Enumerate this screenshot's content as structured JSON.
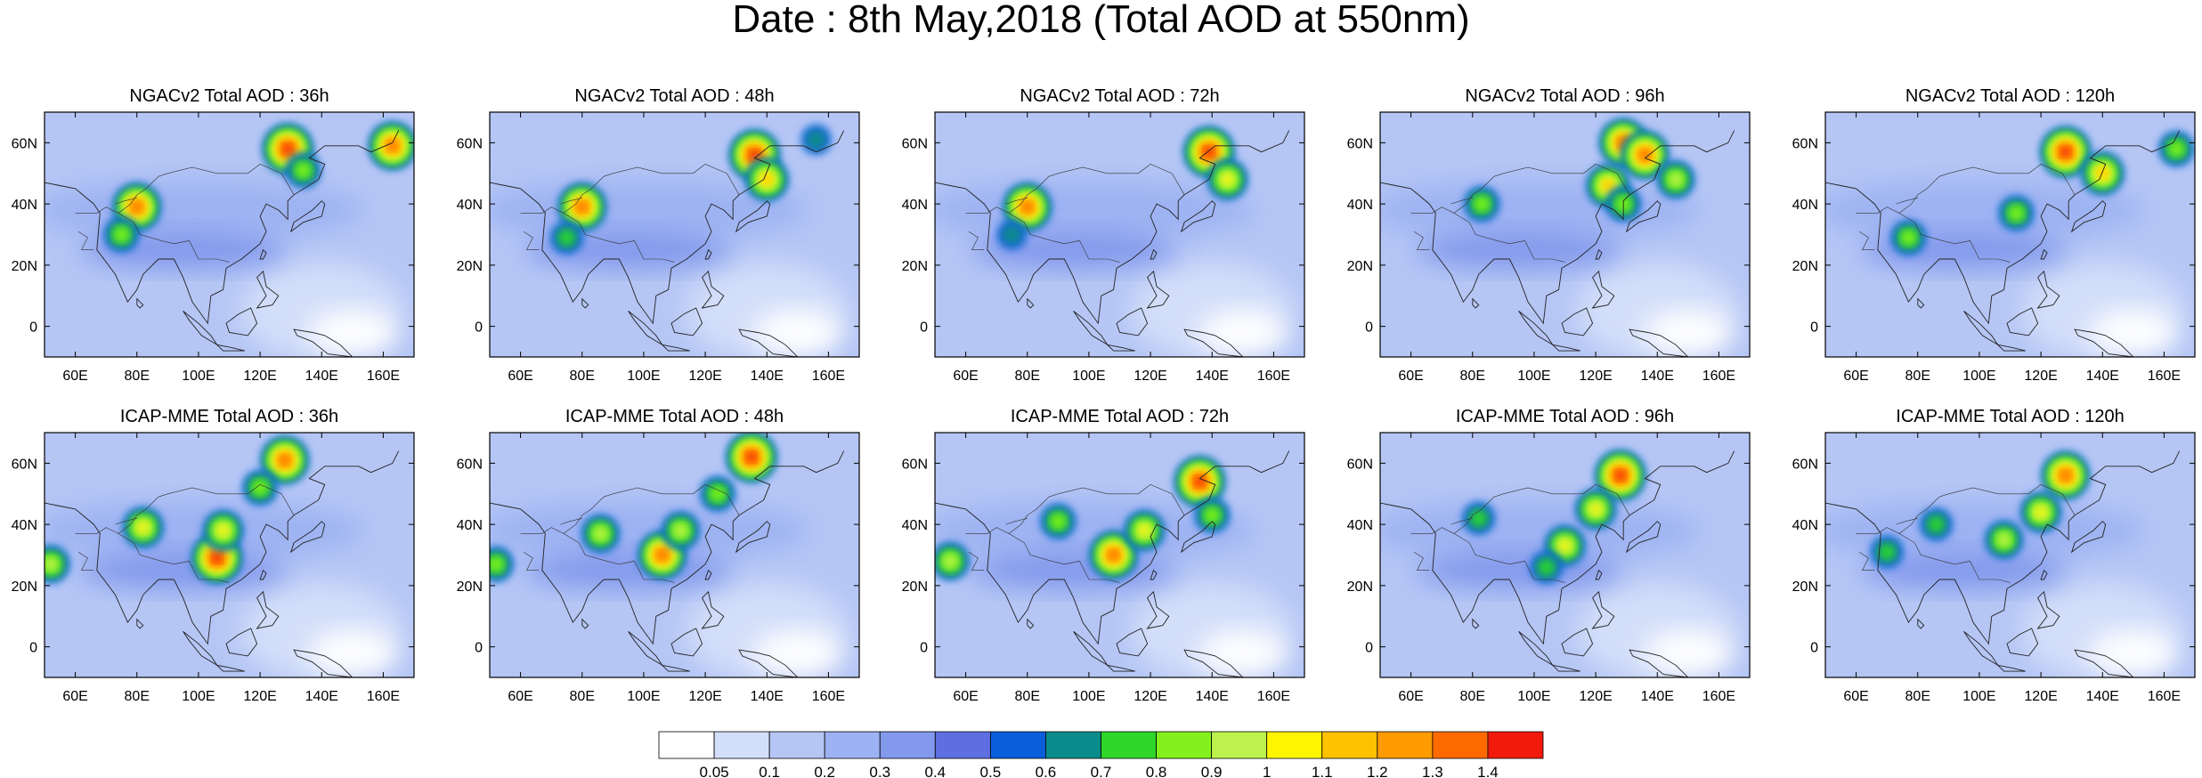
{
  "figure": {
    "title": "Date : 8th May,2018 (Total AOD at 550nm)"
  },
  "panel_rows": [
    {
      "model": "NGACv2",
      "panels": [
        {
          "title": "NGACv2 Total AOD : 36h",
          "forecast_hour": 36
        },
        {
          "title": "NGACv2 Total AOD : 48h",
          "forecast_hour": 48
        },
        {
          "title": "NGACv2 Total AOD : 72h",
          "forecast_hour": 72
        },
        {
          "title": "NGACv2 Total AOD : 96h",
          "forecast_hour": 96
        },
        {
          "title": "NGACv2 Total AOD : 120h",
          "forecast_hour": 120
        }
      ]
    },
    {
      "model": "ICAP-MME",
      "panels": [
        {
          "title": "ICAP-MME Total AOD : 36h",
          "forecast_hour": 36
        },
        {
          "title": "ICAP-MME Total AOD : 48h",
          "forecast_hour": 48
        },
        {
          "title": "ICAP-MME Total AOD : 72h",
          "forecast_hour": 72
        },
        {
          "title": "ICAP-MME Total AOD : 96h",
          "forecast_hour": 96
        },
        {
          "title": "ICAP-MME Total AOD : 120h",
          "forecast_hour": 120
        }
      ]
    }
  ],
  "map_axes": {
    "lon_range": [
      50,
      170
    ],
    "lat_range": [
      -10,
      70
    ],
    "lon_ticks": [
      60,
      80,
      100,
      120,
      140,
      160
    ],
    "lon_tick_labels": [
      "60E",
      "80E",
      "100E",
      "120E",
      "140E",
      "160E"
    ],
    "lat_ticks": [
      0,
      20,
      40,
      60
    ],
    "lat_tick_labels": [
      "0",
      "20N",
      "40N",
      "60N"
    ],
    "grid": false
  },
  "colorbar": {
    "orientation": "horizontal",
    "placement": "bottom",
    "labels": [
      "0.05",
      "0.1",
      "0.2",
      "0.3",
      "0.4",
      "0.5",
      "0.6",
      "0.7",
      "0.8",
      "0.9",
      "1",
      "1.1",
      "1.2",
      "1.3",
      "1.4"
    ],
    "levels": [
      0.05,
      0.1,
      0.2,
      0.3,
      0.4,
      0.5,
      0.6,
      0.7,
      0.8,
      0.9,
      1.0,
      1.1,
      1.2,
      1.3,
      1.4
    ],
    "colors": [
      "#ffffff",
      "#d3def9",
      "#b5c6f5",
      "#9db2f2",
      "#8299ec",
      "#5e6fe2",
      "#0a5edc",
      "#0a8c8c",
      "#2fd72a",
      "#86f01c",
      "#bdf24d",
      "#fff500",
      "#ffc200",
      "#ff9b00",
      "#ff6a00",
      "#f21a0c"
    ]
  },
  "chart_data": {
    "type": "heatmap",
    "variable": "Total AOD at 550nm",
    "date": "8th May,2018",
    "x_range": [
      50,
      170
    ],
    "y_range": [
      -10,
      70
    ],
    "panels": [
      {
        "model": "NGACv2",
        "forecast_hour": 36,
        "features": [
          {
            "lon": 129,
            "lat": 58,
            "aod": 1.4
          },
          {
            "lon": 163,
            "lat": 59,
            "aod": 1.3
          },
          {
            "lon": 80,
            "lat": 39,
            "aod": 1.3
          },
          {
            "lon": 75,
            "lat": 30,
            "aod": 0.8
          },
          {
            "lon": 134,
            "lat": 51,
            "aod": 0.8
          }
        ]
      },
      {
        "model": "NGACv2",
        "forecast_hour": 48,
        "features": [
          {
            "lon": 136,
            "lat": 56,
            "aod": 1.4
          },
          {
            "lon": 80,
            "lat": 39,
            "aod": 1.3
          },
          {
            "lon": 140,
            "lat": 48,
            "aod": 1.1
          },
          {
            "lon": 75,
            "lat": 29,
            "aod": 0.7
          },
          {
            "lon": 156,
            "lat": 61,
            "aod": 0.6
          }
        ]
      },
      {
        "model": "NGACv2",
        "forecast_hour": 72,
        "features": [
          {
            "lon": 139,
            "lat": 57,
            "aod": 1.4
          },
          {
            "lon": 80,
            "lat": 39,
            "aod": 1.3
          },
          {
            "lon": 145,
            "lat": 48,
            "aod": 1.0
          },
          {
            "lon": 75,
            "lat": 30,
            "aod": 0.6
          }
        ]
      },
      {
        "model": "NGACv2",
        "forecast_hour": 96,
        "features": [
          {
            "lon": 129,
            "lat": 60,
            "aod": 1.3
          },
          {
            "lon": 136,
            "lat": 56,
            "aod": 1.3
          },
          {
            "lon": 124,
            "lat": 46,
            "aod": 1.1
          },
          {
            "lon": 146,
            "lat": 48,
            "aod": 0.9
          },
          {
            "lon": 129,
            "lat": 40,
            "aod": 0.8
          },
          {
            "lon": 83,
            "lat": 40,
            "aod": 0.8
          }
        ]
      },
      {
        "model": "NGACv2",
        "forecast_hour": 120,
        "features": [
          {
            "lon": 128,
            "lat": 57,
            "aod": 1.4
          },
          {
            "lon": 140,
            "lat": 50,
            "aod": 1.1
          },
          {
            "lon": 112,
            "lat": 37,
            "aod": 0.8
          },
          {
            "lon": 77,
            "lat": 29,
            "aod": 0.8
          },
          {
            "lon": 164,
            "lat": 58,
            "aod": 0.8
          }
        ]
      },
      {
        "model": "ICAP-MME",
        "forecast_hour": 36,
        "features": [
          {
            "lon": 128,
            "lat": 61,
            "aod": 1.3
          },
          {
            "lon": 106,
            "lat": 29,
            "aod": 1.4
          },
          {
            "lon": 108,
            "lat": 38,
            "aod": 1.0
          },
          {
            "lon": 82,
            "lat": 39,
            "aod": 1.0
          },
          {
            "lon": 52,
            "lat": 27,
            "aod": 0.9
          },
          {
            "lon": 120,
            "lat": 52,
            "aod": 0.8
          }
        ]
      },
      {
        "model": "ICAP-MME",
        "forecast_hour": 48,
        "features": [
          {
            "lon": 135,
            "lat": 62,
            "aod": 1.4
          },
          {
            "lon": 106,
            "lat": 30,
            "aod": 1.3
          },
          {
            "lon": 112,
            "lat": 38,
            "aod": 0.9
          },
          {
            "lon": 86,
            "lat": 37,
            "aod": 0.9
          },
          {
            "lon": 52,
            "lat": 27,
            "aod": 0.8
          },
          {
            "lon": 124,
            "lat": 50,
            "aod": 0.8
          }
        ]
      },
      {
        "model": "ICAP-MME",
        "forecast_hour": 72,
        "features": [
          {
            "lon": 136,
            "lat": 54,
            "aod": 1.4
          },
          {
            "lon": 108,
            "lat": 30,
            "aod": 1.3
          },
          {
            "lon": 118,
            "lat": 38,
            "aod": 1.0
          },
          {
            "lon": 55,
            "lat": 28,
            "aod": 0.9
          },
          {
            "lon": 90,
            "lat": 41,
            "aod": 0.8
          },
          {
            "lon": 140,
            "lat": 43,
            "aod": 0.8
          }
        ]
      },
      {
        "model": "ICAP-MME",
        "forecast_hour": 96,
        "features": [
          {
            "lon": 128,
            "lat": 56,
            "aod": 1.4
          },
          {
            "lon": 120,
            "lat": 45,
            "aod": 1.0
          },
          {
            "lon": 110,
            "lat": 33,
            "aod": 1.0
          },
          {
            "lon": 82,
            "lat": 42,
            "aod": 0.7
          },
          {
            "lon": 104,
            "lat": 26,
            "aod": 0.7
          }
        ]
      },
      {
        "model": "ICAP-MME",
        "forecast_hour": 120,
        "features": [
          {
            "lon": 128,
            "lat": 56,
            "aod": 1.3
          },
          {
            "lon": 120,
            "lat": 44,
            "aod": 1.0
          },
          {
            "lon": 108,
            "lat": 35,
            "aod": 0.9
          },
          {
            "lon": 86,
            "lat": 40,
            "aod": 0.7
          },
          {
            "lon": 70,
            "lat": 31,
            "aod": 0.7
          }
        ]
      }
    ]
  }
}
